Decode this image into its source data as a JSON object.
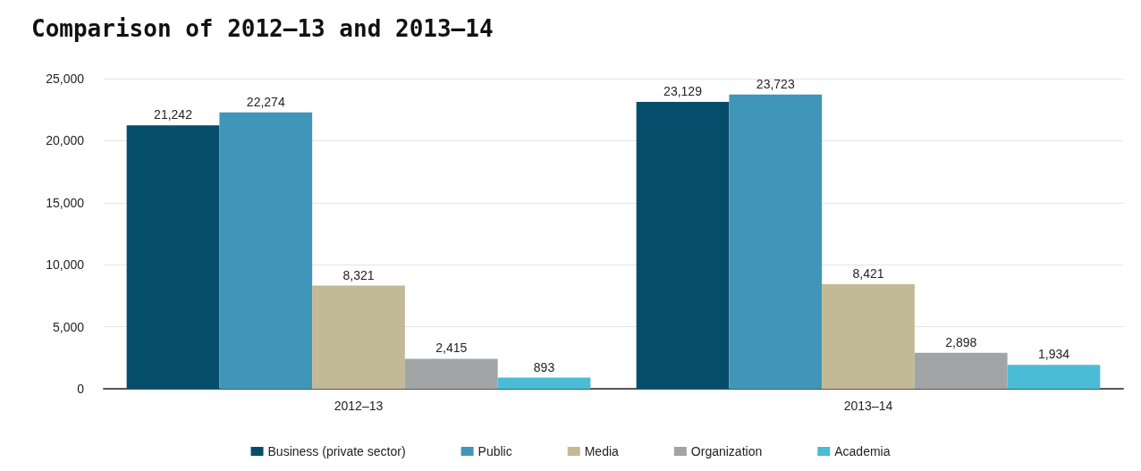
{
  "chart_data": {
    "type": "bar",
    "title": "Comparison of 2012–13 and 2013–14",
    "categories": [
      "2012–13",
      "2013–14"
    ],
    "series": [
      {
        "name": "Business (private sector)",
        "color": "#044d6b",
        "values": [
          21242,
          23129
        ],
        "value_labels": [
          "21,242",
          "23,129"
        ]
      },
      {
        "name": "Public",
        "color": "#4096b8",
        "values": [
          22274,
          23723
        ],
        "value_labels": [
          "22,274",
          "23,723"
        ]
      },
      {
        "name": "Media",
        "color": "#c2b996",
        "values": [
          8321,
          8421
        ],
        "value_labels": [
          "8,321",
          "8,421"
        ]
      },
      {
        "name": "Organization",
        "color": "#a0a4a7",
        "values": [
          2415,
          2898
        ],
        "value_labels": [
          "2,415",
          "2,898"
        ]
      },
      {
        "name": "Academia",
        "color": "#4bbcd6",
        "values": [
          893,
          1934
        ],
        "value_labels": [
          "893",
          "1,934"
        ]
      }
    ],
    "ylim": [
      0,
      25000
    ],
    "yticks": [
      0,
      {
        "value": 5000,
        "label": "5,000"
      },
      {
        "value": 10000,
        "label": "10,000"
      },
      {
        "value": 15000,
        "label": "15,000"
      },
      {
        "value": 20000,
        "label": "20,000"
      },
      {
        "value": 25000,
        "label": "25,000"
      }
    ],
    "grid": "y",
    "legend": "bottom"
  }
}
